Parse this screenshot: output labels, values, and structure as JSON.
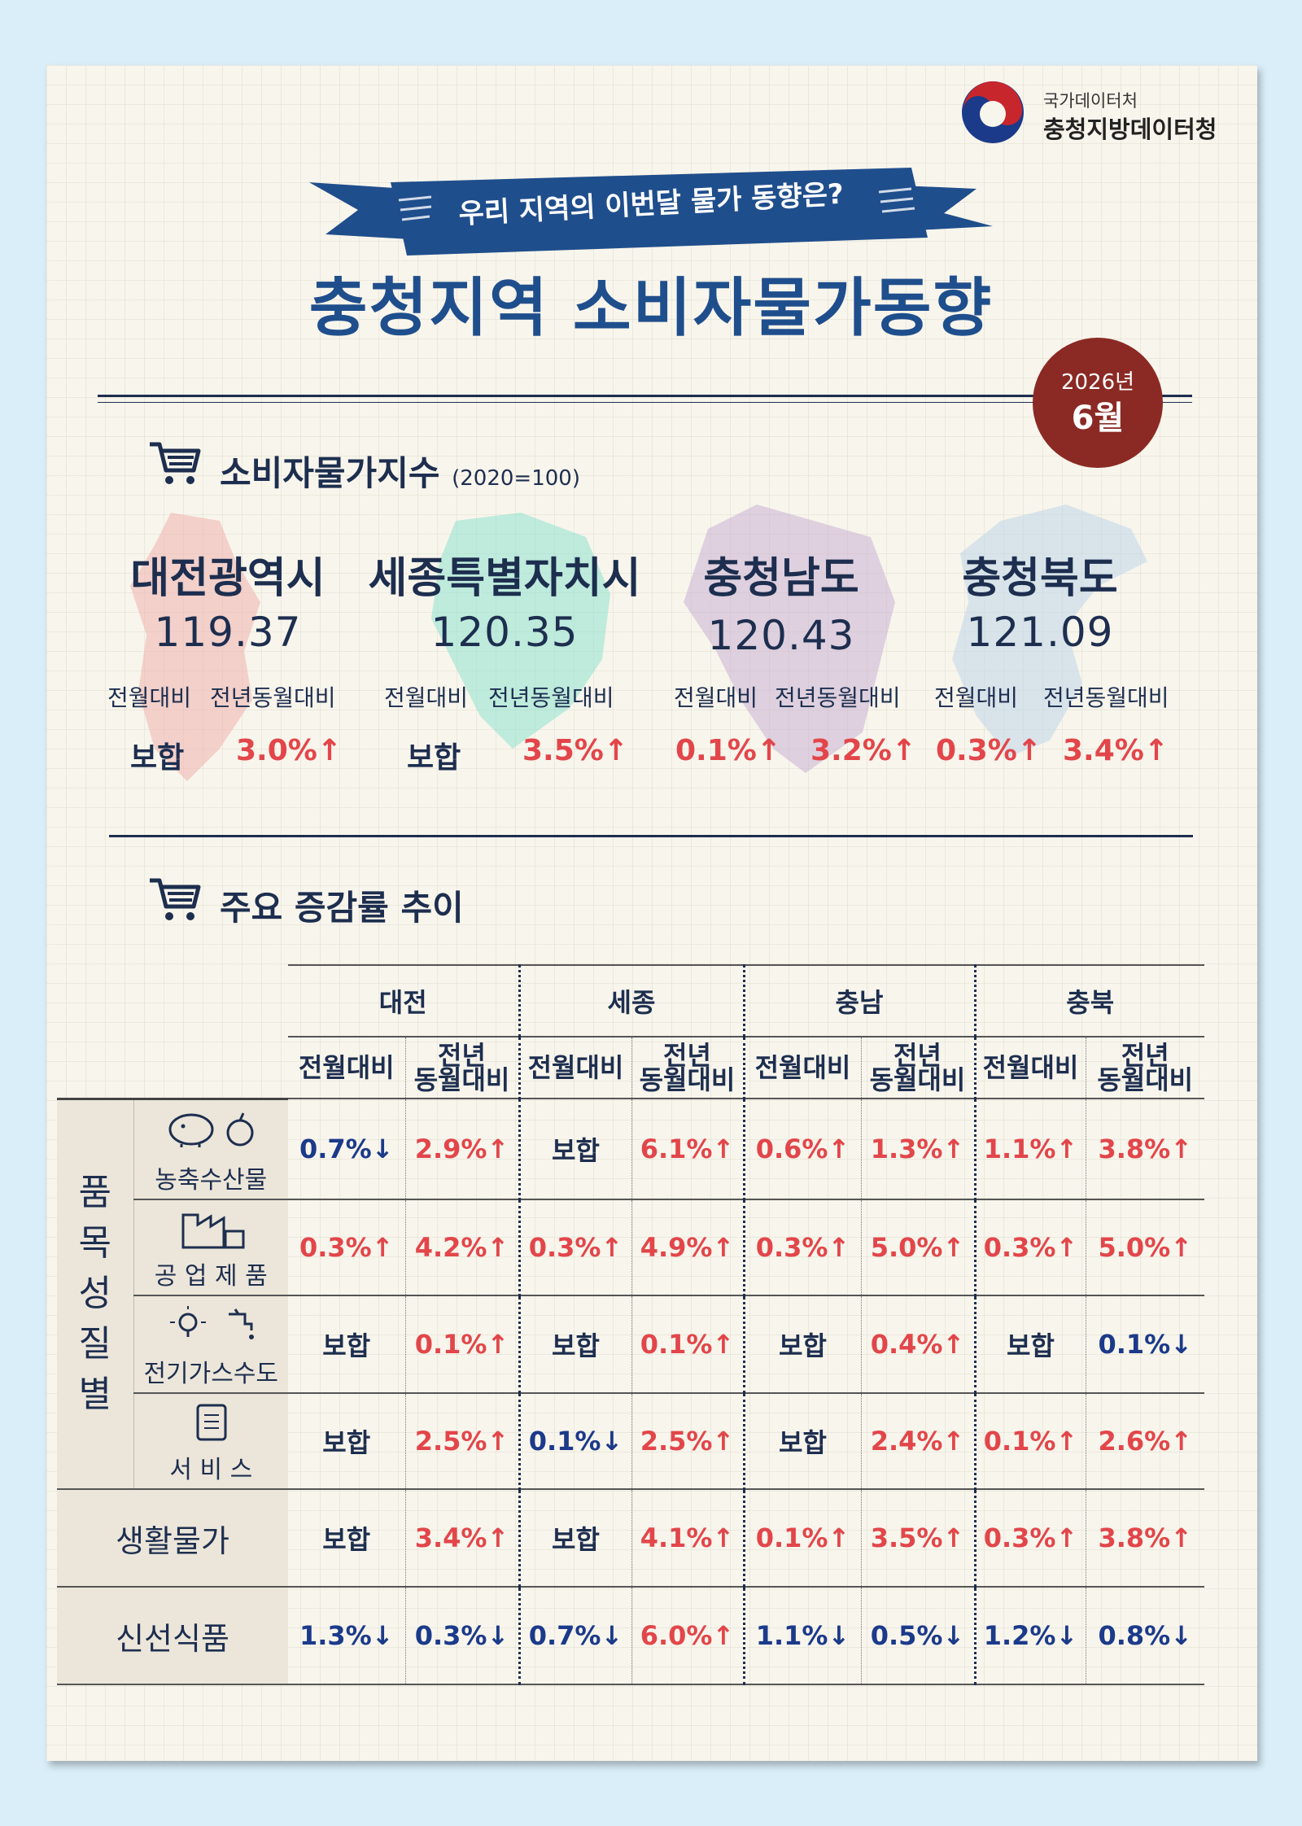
{
  "agency": {
    "small": "국가데이터처",
    "name": "충청지방데이터청"
  },
  "banner_text": "우리 지역의 이번달 물가 동향은?",
  "title": "충청지역 소비자물가동향",
  "date": {
    "year": "2026년",
    "month": "6월"
  },
  "cpi_section": {
    "title": "소비자물가지수",
    "base": "(2020=100)",
    "labels": {
      "mom": "전월대비",
      "yoy": "전년동월대비"
    },
    "regions": [
      {
        "name": "대전광역시",
        "index": "119.37",
        "mom": "보합",
        "mom_dir": "flat",
        "yoy": "3.0%↑",
        "yoy_dir": "up",
        "map_color": "#f0b3b0"
      },
      {
        "name": "세종특별자치시",
        "index": "120.35",
        "mom": "보합",
        "mom_dir": "flat",
        "yoy": "3.5%↑",
        "yoy_dir": "up",
        "map_color": "#8fe3cf"
      },
      {
        "name": "충청남도",
        "index": "120.43",
        "mom": "0.1%↑",
        "mom_dir": "up",
        "yoy": "3.2%↑",
        "yoy_dir": "up",
        "map_color": "#c9b3d3"
      },
      {
        "name": "충청북도",
        "index": "121.09",
        "mom": "0.3%↑",
        "mom_dir": "up",
        "yoy": "3.4%↑",
        "yoy_dir": "up",
        "map_color": "#bfd7ea"
      }
    ]
  },
  "trend_section": {
    "title": "주요 증감률 추이",
    "regions": [
      "대전",
      "세종",
      "충남",
      "충북"
    ],
    "sub_labels": {
      "mom": "전월대비",
      "yoy_line1": "전년",
      "yoy_line2": "동월대비"
    },
    "group_label": [
      "품",
      "목",
      "성",
      "질",
      "별"
    ],
    "rows": [
      {
        "label": "농축수산물",
        "icon": "piggy-apple-icon",
        "values": [
          [
            "0.7%↓",
            "down"
          ],
          [
            "2.9%↑",
            "up"
          ],
          [
            "보합",
            "flat"
          ],
          [
            "6.1%↑",
            "up"
          ],
          [
            "0.6%↑",
            "up"
          ],
          [
            "1.3%↑",
            "up"
          ],
          [
            "1.1%↑",
            "up"
          ],
          [
            "3.8%↑",
            "up"
          ]
        ]
      },
      {
        "label": "공 업 제 품",
        "icon": "factory-icon",
        "values": [
          [
            "0.3%↑",
            "up"
          ],
          [
            "4.2%↑",
            "up"
          ],
          [
            "0.3%↑",
            "up"
          ],
          [
            "4.9%↑",
            "up"
          ],
          [
            "0.3%↑",
            "up"
          ],
          [
            "5.0%↑",
            "up"
          ],
          [
            "0.3%↑",
            "up"
          ],
          [
            "5.0%↑",
            "up"
          ]
        ]
      },
      {
        "label": "전기가스수도",
        "icon": "bulb-faucet-icon",
        "values": [
          [
            "보합",
            "flat"
          ],
          [
            "0.1%↑",
            "up"
          ],
          [
            "보합",
            "flat"
          ],
          [
            "0.1%↑",
            "up"
          ],
          [
            "보합",
            "flat"
          ],
          [
            "0.4%↑",
            "up"
          ],
          [
            "보합",
            "flat"
          ],
          [
            "0.1%↓",
            "down"
          ]
        ]
      },
      {
        "label": "서 비 스",
        "icon": "receipt-icon",
        "values": [
          [
            "보합",
            "flat"
          ],
          [
            "2.5%↑",
            "up"
          ],
          [
            "0.1%↓",
            "down"
          ],
          [
            "2.5%↑",
            "up"
          ],
          [
            "보합",
            "flat"
          ],
          [
            "2.4%↑",
            "up"
          ],
          [
            "0.1%↑",
            "up"
          ],
          [
            "2.6%↑",
            "up"
          ]
        ]
      }
    ],
    "wide_rows": [
      {
        "label": "생활물가",
        "values": [
          [
            "보합",
            "flat"
          ],
          [
            "3.4%↑",
            "up"
          ],
          [
            "보합",
            "flat"
          ],
          [
            "4.1%↑",
            "up"
          ],
          [
            "0.1%↑",
            "up"
          ],
          [
            "3.5%↑",
            "up"
          ],
          [
            "0.3%↑",
            "up"
          ],
          [
            "3.8%↑",
            "up"
          ]
        ]
      },
      {
        "label": "신선식품",
        "values": [
          [
            "1.3%↓",
            "down"
          ],
          [
            "0.3%↓",
            "down"
          ],
          [
            "0.7%↓",
            "down"
          ],
          [
            "6.0%↑",
            "up"
          ],
          [
            "1.1%↓",
            "down"
          ],
          [
            "0.5%↓",
            "down"
          ],
          [
            "1.2%↓",
            "down"
          ],
          [
            "0.8%↓",
            "down"
          ]
        ]
      }
    ]
  },
  "colors": {
    "up": "#e2464a",
    "down": "#1b3a8a",
    "title_blue": "#1f4e8c",
    "badge": "#8b2a24",
    "navy": "#1d2e4f"
  }
}
